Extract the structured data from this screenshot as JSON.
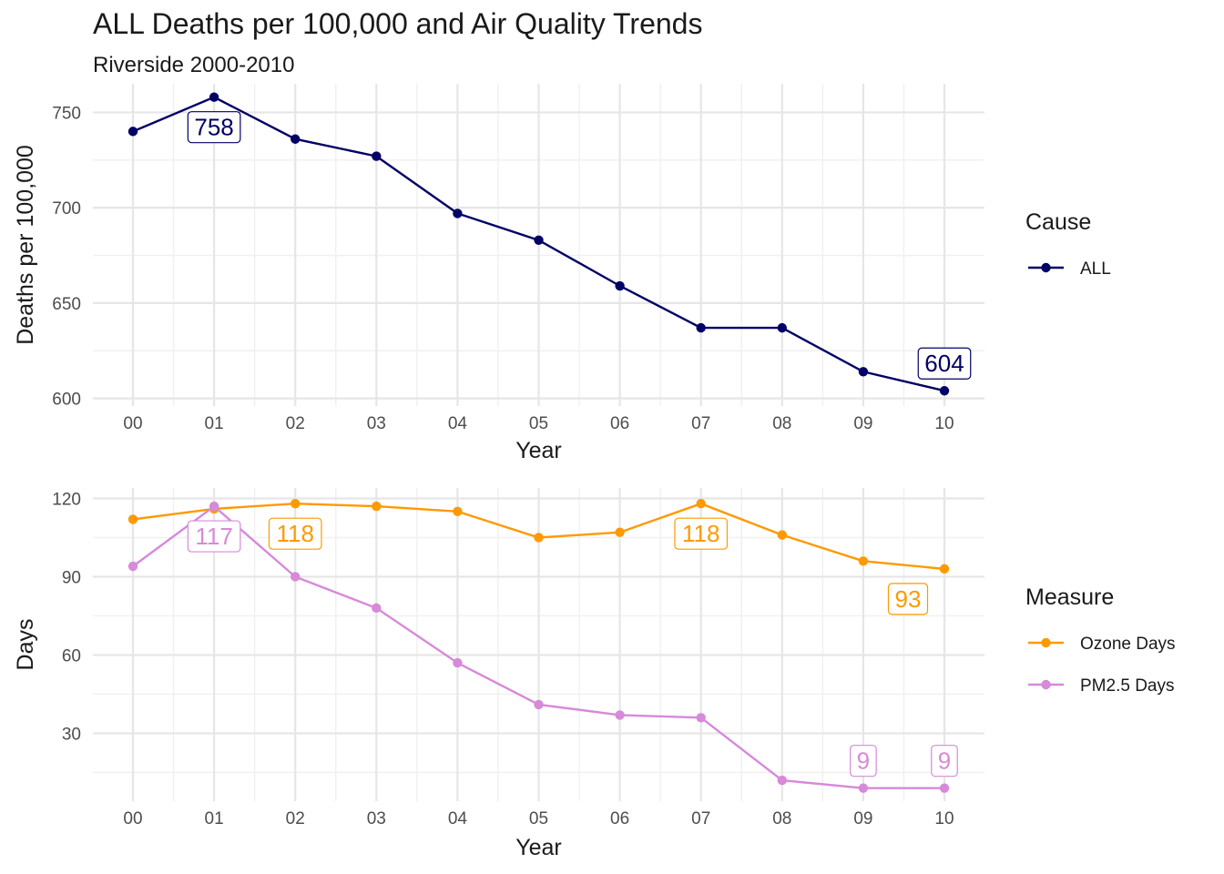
{
  "title": "ALL Deaths per 100,000 and Air Quality Trends",
  "subtitle": "Riverside 2000-2010",
  "chart_data": [
    {
      "type": "line",
      "title": "ALL Deaths per 100,000 and Air Quality Trends",
      "subtitle": "Riverside 2000-2010",
      "xlabel": "Year",
      "ylabel": "Deaths per 100,000",
      "x": [
        "00",
        "01",
        "02",
        "03",
        "04",
        "05",
        "06",
        "07",
        "08",
        "09",
        "10"
      ],
      "ylim": [
        596,
        765
      ],
      "yticks": [
        600,
        650,
        700,
        750
      ],
      "grid": true,
      "legend": {
        "title": "Cause",
        "position": "right"
      },
      "series": [
        {
          "name": "ALL",
          "color": "#000066",
          "values": [
            740,
            758,
            736,
            727,
            697,
            683,
            659,
            637,
            637,
            614,
            604
          ]
        }
      ],
      "annotations": [
        {
          "series": "ALL",
          "x": "01",
          "text": "758"
        },
        {
          "series": "ALL",
          "x": "10",
          "text": "604"
        }
      ]
    },
    {
      "type": "line",
      "xlabel": "Year",
      "ylabel": "Days",
      "x": [
        "00",
        "01",
        "02",
        "03",
        "04",
        "05",
        "06",
        "07",
        "08",
        "09",
        "10"
      ],
      "ylim": [
        4,
        124
      ],
      "yticks": [
        30,
        60,
        90,
        120
      ],
      "grid": true,
      "legend": {
        "title": "Measure",
        "position": "right"
      },
      "series": [
        {
          "name": "Ozone Days",
          "color": "#FF9900",
          "values": [
            112,
            116,
            118,
            117,
            115,
            105,
            107,
            118,
            106,
            96,
            93
          ]
        },
        {
          "name": "PM2.5 Days",
          "color": "#D68AD9",
          "values": [
            94,
            117,
            90,
            78,
            57,
            41,
            37,
            36,
            12,
            9,
            9
          ]
        }
      ],
      "annotations": [
        {
          "series": "PM2.5 Days",
          "x": "01",
          "text": "117"
        },
        {
          "series": "Ozone Days",
          "x": "02",
          "text": "118"
        },
        {
          "series": "Ozone Days",
          "x": "07",
          "text": "118"
        },
        {
          "series": "Ozone Days",
          "x": "10",
          "text": "93"
        },
        {
          "series": "PM2.5 Days",
          "x": "09",
          "text": "9"
        },
        {
          "series": "PM2.5 Days",
          "x": "10",
          "text": "9"
        }
      ]
    }
  ]
}
